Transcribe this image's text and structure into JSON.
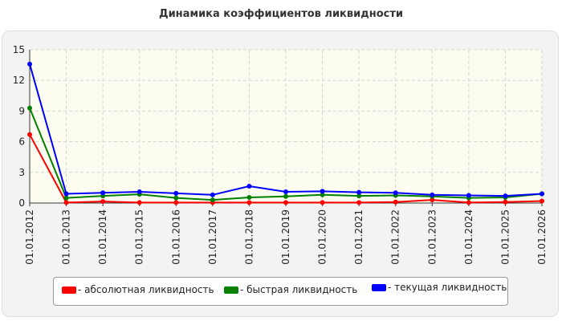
{
  "chart_data": {
    "type": "line",
    "title": "Динамика коэффициентов ликвидности",
    "xlabel": "",
    "ylabel": "",
    "categories": [
      "01.01.2012",
      "01.01.2013",
      "01.01.2014",
      "01.01.2015",
      "01.01.2016",
      "01.01.2017",
      "01.01.2018",
      "01.01.2019",
      "01.01.2020",
      "01.01.2021",
      "01.01.2022",
      "01.01.2023",
      "01.01.2024",
      "01.01.2025",
      "01.01.2026"
    ],
    "ylim": [
      0,
      15
    ],
    "yticks": [
      0,
      3,
      6,
      9,
      12,
      15
    ],
    "grid": true,
    "legend_position": "bottom",
    "series": [
      {
        "name": "- абсолютная ликвидность",
        "color": "#ff0000",
        "values": [
          6.7,
          0.05,
          0.15,
          0.05,
          0.05,
          0.05,
          0.05,
          0.05,
          0.05,
          0.05,
          0.1,
          0.3,
          0.05,
          0.1,
          0.2
        ]
      },
      {
        "name": "- быстрая ликвидность",
        "color": "#008000",
        "values": [
          9.3,
          0.5,
          0.7,
          0.85,
          0.5,
          0.3,
          0.55,
          0.65,
          0.8,
          0.7,
          0.75,
          0.65,
          0.5,
          0.55,
          0.9
        ]
      },
      {
        "name": "- текущая ликвидность",
        "color": "#0000ff",
        "values": [
          13.6,
          0.9,
          1.0,
          1.1,
          0.95,
          0.8,
          1.65,
          1.1,
          1.15,
          1.05,
          1.0,
          0.8,
          0.75,
          0.7,
          0.9
        ]
      }
    ]
  }
}
